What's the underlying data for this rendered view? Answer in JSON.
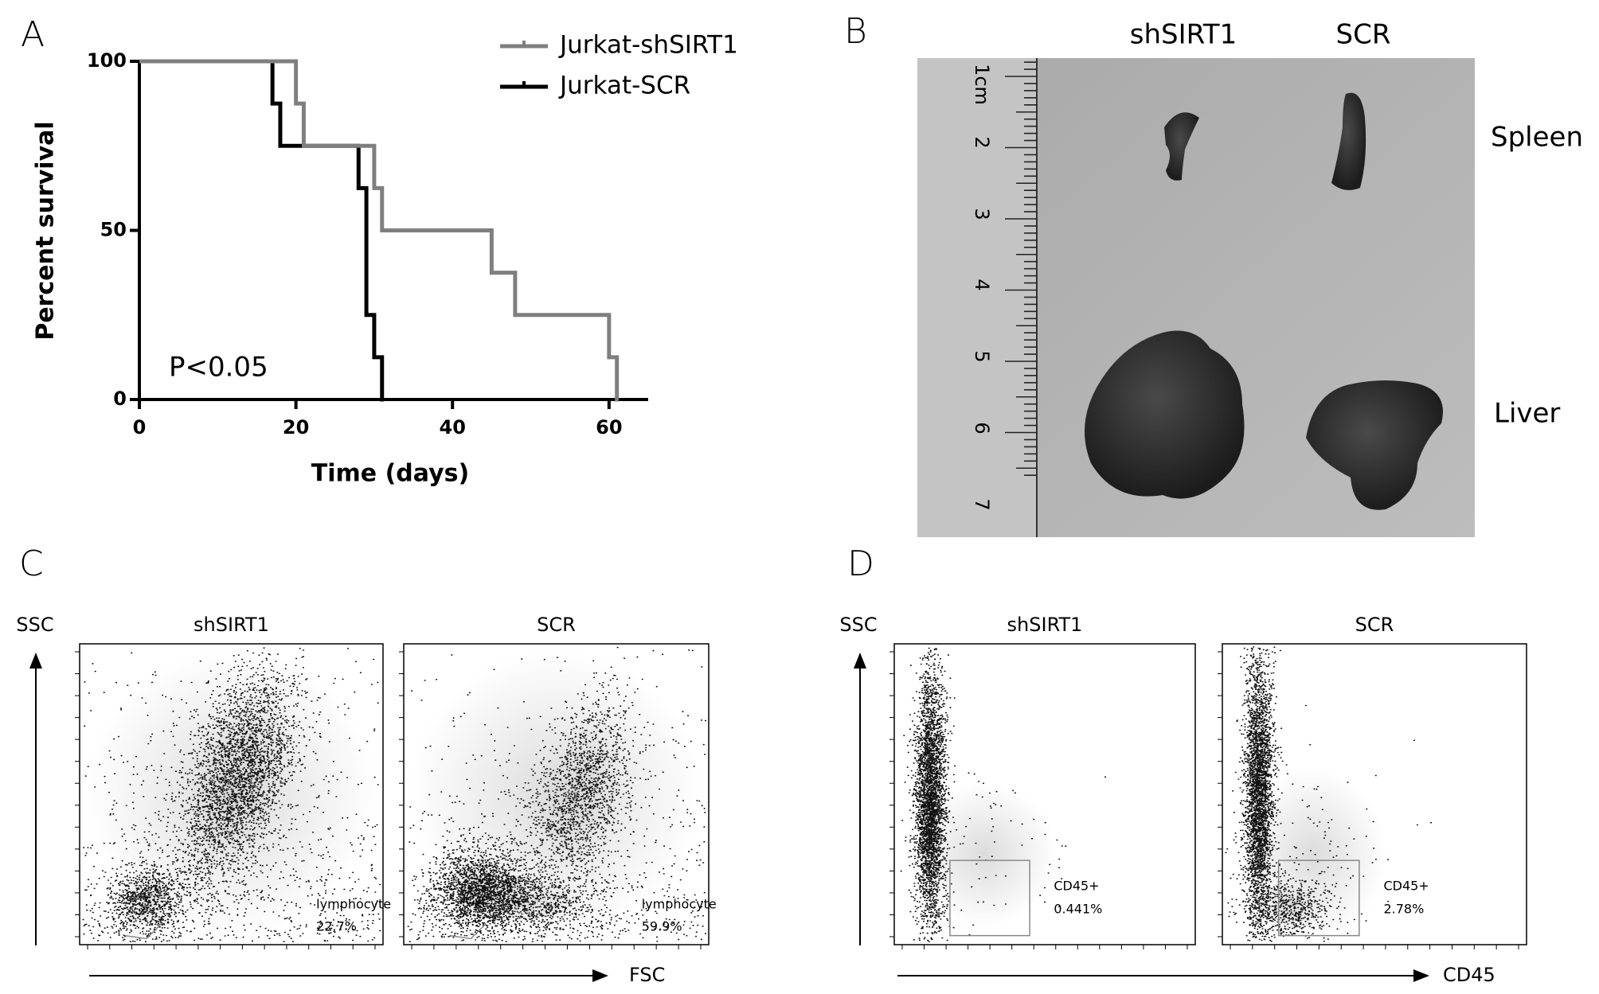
{
  "panel_labels": [
    "A",
    "B",
    "C",
    "D"
  ],
  "chart_data": {
    "type": "line",
    "step": true,
    "xlabel": "Time (days)",
    "ylabel": "Percent survival",
    "annotation": "P<0.05",
    "xlim": [
      0,
      65
    ],
    "ylim": [
      0,
      100
    ],
    "xticks": [
      0,
      20,
      40,
      60
    ],
    "yticks": [
      0,
      50,
      100
    ],
    "legend": "upper right",
    "series": [
      {
        "name": "Jurkat-shSIRT1",
        "color": "#7f7f7f",
        "x": [
          0,
          20,
          21,
          30,
          31,
          45,
          48,
          60,
          61
        ],
        "values": [
          100,
          87.5,
          75,
          62.5,
          50,
          37.5,
          25,
          12.5,
          0
        ]
      },
      {
        "name": "Jurkat-SCR",
        "color": "#000000",
        "x": [
          0,
          17,
          18,
          28,
          29,
          30,
          31
        ],
        "values": [
          100,
          87.5,
          75,
          62.5,
          25,
          12.5,
          0
        ]
      }
    ]
  },
  "photo": {
    "columns": [
      "shSIRT1",
      "SCR"
    ],
    "rows": [
      "Spleen",
      "Liver"
    ],
    "ruler": [
      "1cm",
      "2",
      "3",
      "4",
      "5",
      "6",
      "7"
    ]
  },
  "flow_c": {
    "y_axis": "SSC",
    "x_axis": "FSC",
    "plots": [
      {
        "title": "shSIRT1",
        "gate": "lymphocyte",
        "percent": "22.7%"
      },
      {
        "title": "SCR",
        "gate": "lymphocyte",
        "percent": "59.9%"
      }
    ]
  },
  "flow_d": {
    "y_axis": "SSC",
    "x_axis": "CD45",
    "plots": [
      {
        "title": "shSIRT1",
        "gate": "CD45+",
        "percent": "0.441%"
      },
      {
        "title": "SCR",
        "gate": "CD45+",
        "percent": "2.78%"
      }
    ]
  }
}
